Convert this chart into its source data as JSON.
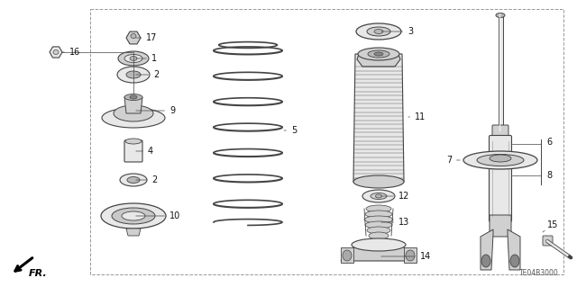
{
  "bg_color": "#ffffff",
  "border_color": "#aaaaaa",
  "title_code": "TE04B3000",
  "line_color": "#444444",
  "text_color": "#111111",
  "fill_light": "#e8e8e8",
  "fill_mid": "#d0d0d0",
  "fill_dark": "#b8b8b8"
}
